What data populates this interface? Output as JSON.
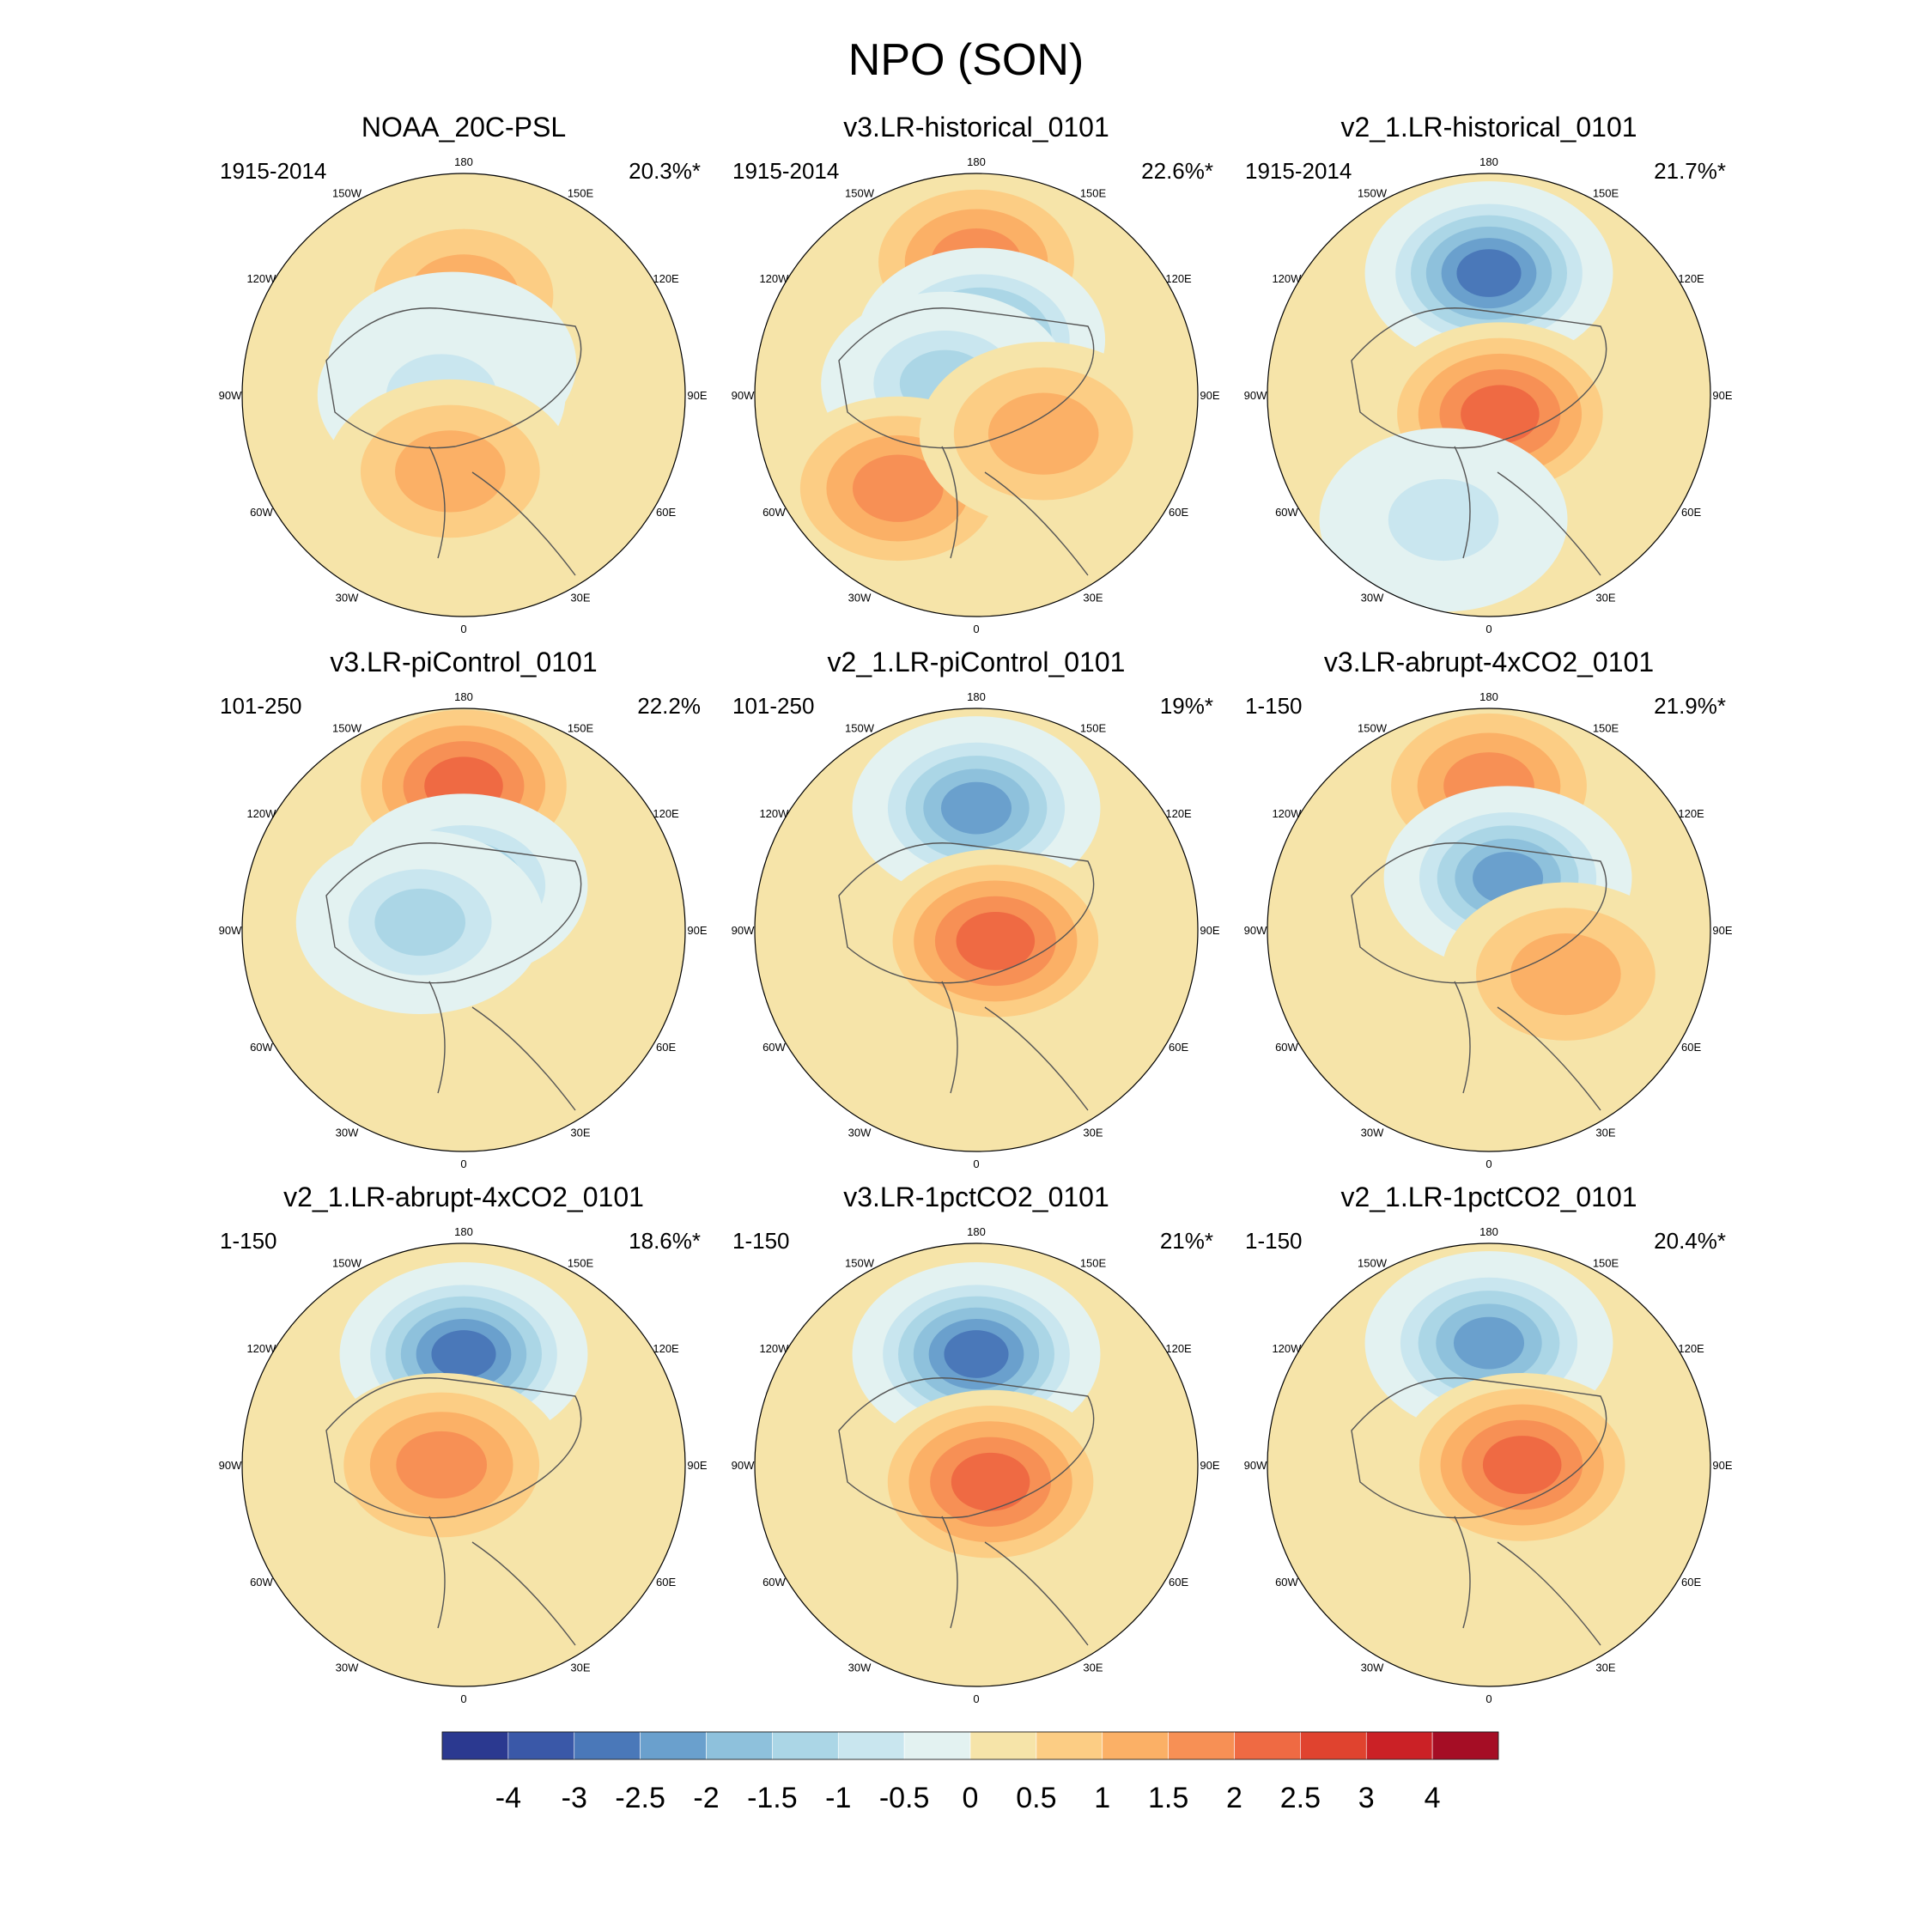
{
  "figure": {
    "title": "NPO (SON)",
    "projection": "north polar stereographic",
    "lon_labels": [
      "180",
      "150E",
      "120E",
      "90E",
      "60E",
      "30E",
      "0",
      "30W",
      "60W",
      "90W",
      "120W",
      "150W"
    ]
  },
  "panels": [
    {
      "title": "NOAA_20C-PSL",
      "period": "1915-2014",
      "variance": "20.3%*",
      "centers": [
        {
          "lon": 180,
          "r": 0.45,
          "v": 1.0
        },
        {
          "lon": 200,
          "r": 0.15,
          "v": -1.5
        },
        {
          "lon": 270,
          "r": 0.1,
          "v": -1.0
        },
        {
          "lon": 350,
          "r": 0.35,
          "v": 1.0
        }
      ]
    },
    {
      "title": "v3.LR-historical_0101",
      "period": "1915-2014",
      "variance": "22.6%*",
      "centers": [
        {
          "lon": 180,
          "r": 0.6,
          "v": 1.5
        },
        {
          "lon": 175,
          "r": 0.25,
          "v": -2.5
        },
        {
          "lon": 250,
          "r": 0.15,
          "v": -1.5
        },
        {
          "lon": 320,
          "r": 0.55,
          "v": 1.5
        },
        {
          "lon": 60,
          "r": 0.35,
          "v": 1.0
        }
      ]
    },
    {
      "title": "v2_1.LR-historical_0101",
      "period": "1915-2014",
      "variance": "21.7%*",
      "centers": [
        {
          "lon": 180,
          "r": 0.55,
          "v": -3.0
        },
        {
          "lon": 30,
          "r": 0.1,
          "v": 2.0
        },
        {
          "lon": 340,
          "r": 0.6,
          "v": -1.0
        }
      ]
    },
    {
      "title": "v3.LR-piControl_0101",
      "period": "101-250",
      "variance": "22.2%",
      "centers": [
        {
          "lon": 180,
          "r": 0.65,
          "v": 2.0
        },
        {
          "lon": 180,
          "r": 0.2,
          "v": -2.0
        },
        {
          "lon": 260,
          "r": 0.2,
          "v": -1.5
        }
      ]
    },
    {
      "title": "v2_1.LR-piControl_0101",
      "period": "101-250",
      "variance": "19%*",
      "centers": [
        {
          "lon": 180,
          "r": 0.55,
          "v": -2.5
        },
        {
          "lon": 60,
          "r": 0.1,
          "v": 2.0
        }
      ]
    },
    {
      "title": "v3.LR-abrupt-4xCO2_0101",
      "period": "1-150",
      "variance": "21.9%*",
      "centers": [
        {
          "lon": 180,
          "r": 0.65,
          "v": 1.5
        },
        {
          "lon": 160,
          "r": 0.25,
          "v": -2.5
        },
        {
          "lon": 60,
          "r": 0.4,
          "v": 1.0
        }
      ]
    },
    {
      "title": "v2_1.LR-abrupt-4xCO2_0101",
      "period": "1-150",
      "variance": "18.6%*",
      "centers": [
        {
          "lon": 180,
          "r": 0.5,
          "v": -3.0
        },
        {
          "lon": 270,
          "r": 0.1,
          "v": 1.5
        }
      ]
    },
    {
      "title": "v3.LR-1pctCO2_0101",
      "period": "1-150",
      "variance": "21%*",
      "centers": [
        {
          "lon": 180,
          "r": 0.5,
          "v": -3.0
        },
        {
          "lon": 40,
          "r": 0.1,
          "v": 2.0
        }
      ]
    },
    {
      "title": "v2_1.LR-1pctCO2_0101",
      "period": "1-150",
      "variance": "20.4%*",
      "centers": [
        {
          "lon": 180,
          "r": 0.55,
          "v": -2.5
        },
        {
          "lon": 90,
          "r": 0.15,
          "v": 2.0
        }
      ]
    }
  ],
  "colorbar": {
    "labels": [
      "-4",
      "-3",
      "-2.5",
      "-2",
      "-1.5",
      "-1",
      "-0.5",
      "0",
      "0.5",
      "1",
      "1.5",
      "2",
      "2.5",
      "3",
      "4"
    ],
    "colors": [
      "#2b3990",
      "#3a58a8",
      "#4a78b9",
      "#6aa0cd",
      "#8ec1dc",
      "#abd6e6",
      "#c9e6ef",
      "#e3f2f1",
      "#f6e4a9",
      "#fccd84",
      "#fbb066",
      "#f79055",
      "#ef6a43",
      "#e0432f",
      "#cb2126",
      "#a50d25"
    ]
  }
}
